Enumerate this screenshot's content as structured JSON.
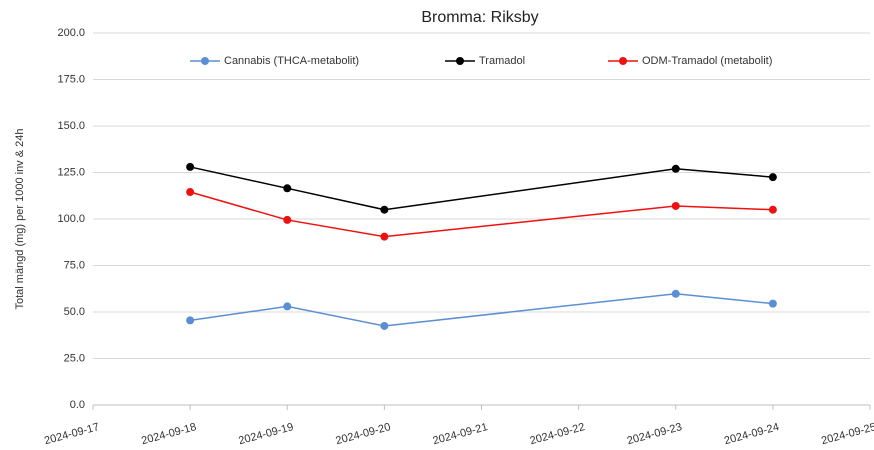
{
  "chart_data": {
    "type": "line",
    "title": "Bromma: Riksby",
    "y_label": "Total mängd (mg) per 1000 inv & 24h",
    "x": [
      "2024-09-18",
      "2024-09-19",
      "2024-09-20",
      "2024-09-23",
      "2024-09-24"
    ],
    "series": [
      {
        "name": "Cannabis (THCA-metabolit)",
        "color": "#5b8fd4",
        "values": [
          45.5,
          53,
          42.5,
          59.8,
          54.5
        ]
      },
      {
        "name": "Tramadol",
        "color": "#000000",
        "values": [
          128,
          116.5,
          105,
          127,
          122.5
        ]
      },
      {
        "name": "ODM-Tramadol (metabolit)",
        "color": "#ee1111",
        "values": [
          114.5,
          99.5,
          90.5,
          107,
          105
        ]
      }
    ],
    "xlim": [
      "2024-09-17",
      "2024-09-25"
    ],
    "xticks": [
      "2024-09-17",
      "2024-09-18",
      "2024-09-19",
      "2024-09-20",
      "2024-09-21",
      "2024-09-22",
      "2024-09-23",
      "2024-09-24",
      "2024-09-25"
    ],
    "ylim": [
      0,
      200
    ],
    "yticks": [
      {
        "value": 0,
        "label": "0.0"
      },
      {
        "value": 25,
        "label": "25.0"
      },
      {
        "value": 50,
        "label": "50.0"
      },
      {
        "value": 75,
        "label": "75.0"
      },
      {
        "value": 100,
        "label": "100.0"
      },
      {
        "value": 125,
        "label": "125.0"
      },
      {
        "value": 150,
        "label": "150.0"
      },
      {
        "value": 175,
        "label": "175.0"
      },
      {
        "value": 200,
        "label": "200.0"
      }
    ],
    "grid": true,
    "legend": "top"
  }
}
